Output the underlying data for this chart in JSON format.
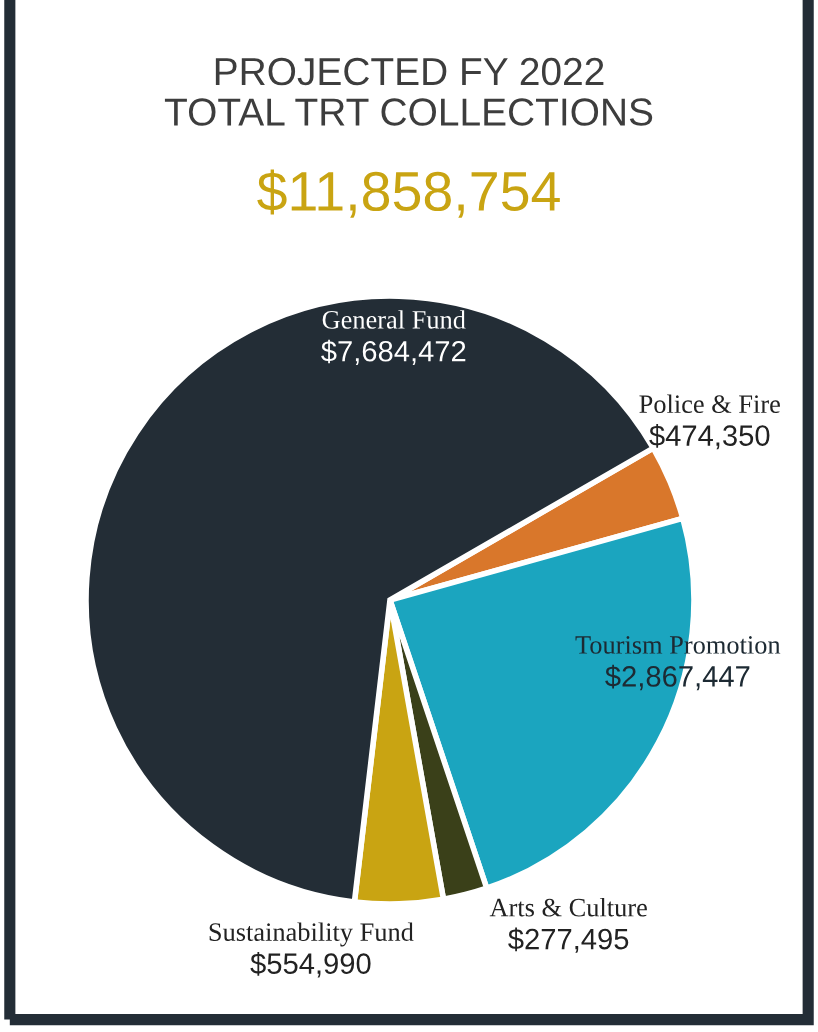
{
  "chart_data": {
    "type": "pie",
    "title": "PROJECTED FY 2022\nTOTAL TRT COLLECTIONS",
    "subtitle": "$11,858,754",
    "categories": [
      "Police & Fire",
      "Tourism Promotion",
      "Arts & Culture",
      "Sustainability Fund",
      "General Fund"
    ],
    "values": [
      474350,
      2867447,
      277495,
      554990,
      7684472
    ],
    "value_labels": [
      "$474,350",
      "$2,867,447",
      "$277,495",
      "$554,990",
      "$7,684,472"
    ],
    "colors": [
      "#d9772b",
      "#1ba5bf",
      "#3a4019",
      "#c9a412",
      "#232d36"
    ]
  }
}
